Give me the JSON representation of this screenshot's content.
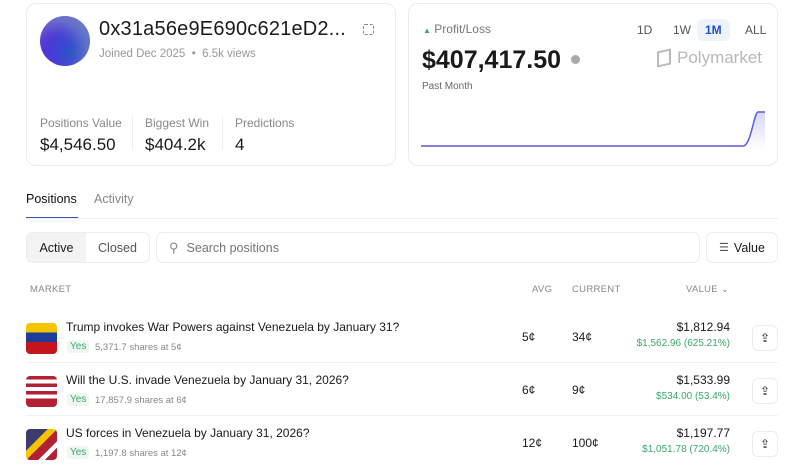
{
  "profile": {
    "name": "0x31a56e9E690c621eD2...",
    "joined": "Joined Dec 2025",
    "views": "6.5k views",
    "stats": [
      {
        "label": "Positions Value",
        "value": "$4,546.50"
      },
      {
        "label": "Biggest Win",
        "value": "$404.2k"
      },
      {
        "label": "Predictions",
        "value": "4"
      }
    ]
  },
  "pnl": {
    "label": "Profit/Loss",
    "value": "$407,417.50",
    "period": "Past Month",
    "brand": "Polymarket",
    "timeframes": [
      "1D",
      "1W",
      "1M",
      "ALL"
    ],
    "selected": "1M",
    "line_color": "#5b5bd6",
    "up_color": "#3aa86a"
  },
  "tabs": [
    "Positions",
    "Activity"
  ],
  "filters": {
    "active": "Active",
    "closed": "Closed",
    "search_placeholder": "Search positions",
    "sort": "Value"
  },
  "columns": {
    "market": "MARKET",
    "avg": "AVG",
    "current": "CURRENT",
    "value": "VALUE"
  },
  "positions": [
    {
      "title": "Trump invokes War Powers against Venezuela by January 31?",
      "outcome": "Yes",
      "shares": "5,371.7 shares at 5¢",
      "avg": "5¢",
      "current": "34¢",
      "value": "$1,812.94",
      "pnl": "$1,562.96 (625.21%)"
    },
    {
      "title": "Will the U.S. invade Venezuela by January 31, 2026?",
      "outcome": "Yes",
      "shares": "17,857.9 shares at 6¢",
      "avg": "6¢",
      "current": "9¢",
      "value": "$1,533.99",
      "pnl": "$534.00 (53.4%)"
    },
    {
      "title": "US forces in Venezuela by January 31, 2026?",
      "outcome": "Yes",
      "shares": "1,197.8 shares at 12¢",
      "avg": "12¢",
      "current": "100¢",
      "value": "$1,197.77",
      "pnl": "$1,051.78 (720.4%)"
    }
  ]
}
